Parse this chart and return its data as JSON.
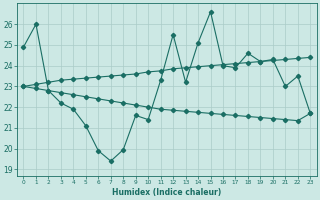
{
  "title": "",
  "xlabel": "Humidex (Indice chaleur)",
  "bg_color": "#cce8e4",
  "line_color": "#1a6e64",
  "grid_color": "#aaccc8",
  "xlim": [
    -0.5,
    23.5
  ],
  "ylim": [
    18.7,
    27.0
  ],
  "yticks": [
    19,
    20,
    21,
    22,
    23,
    24,
    25,
    26
  ],
  "xticks": [
    0,
    1,
    2,
    3,
    4,
    5,
    6,
    7,
    8,
    9,
    10,
    11,
    12,
    13,
    14,
    15,
    16,
    17,
    18,
    19,
    20,
    21,
    22,
    23
  ],
  "line1_x": [
    0,
    1,
    2,
    3,
    4,
    5,
    6,
    7,
    8,
    9,
    10,
    11,
    12,
    13,
    14,
    15,
    16,
    17,
    18,
    19,
    20,
    21,
    22,
    23
  ],
  "line1_y": [
    24.9,
    26.0,
    22.8,
    22.2,
    21.9,
    21.1,
    19.9,
    19.4,
    19.95,
    21.6,
    21.4,
    23.3,
    25.5,
    23.2,
    25.1,
    26.6,
    24.0,
    23.9,
    24.6,
    24.2,
    24.3,
    23.0,
    23.5,
    21.7
  ],
  "line2_x": [
    0,
    1,
    2,
    3,
    4,
    5,
    6,
    7,
    8,
    9,
    10,
    11,
    12,
    13,
    14,
    15,
    16,
    17,
    18,
    19,
    20,
    21,
    22,
    23
  ],
  "line2_y": [
    23.0,
    23.1,
    23.2,
    23.3,
    23.35,
    23.4,
    23.45,
    23.5,
    23.55,
    23.6,
    23.7,
    23.75,
    23.85,
    23.9,
    23.95,
    24.0,
    24.05,
    24.1,
    24.15,
    24.2,
    24.25,
    24.3,
    24.35,
    24.4
  ],
  "line3_x": [
    0,
    1,
    2,
    3,
    4,
    5,
    6,
    7,
    8,
    9,
    10,
    11,
    12,
    13,
    14,
    15,
    16,
    17,
    18,
    19,
    20,
    21,
    22,
    23
  ],
  "line3_y": [
    23.0,
    22.9,
    22.8,
    22.7,
    22.6,
    22.5,
    22.4,
    22.3,
    22.2,
    22.1,
    22.0,
    21.9,
    21.85,
    21.8,
    21.75,
    21.7,
    21.65,
    21.6,
    21.55,
    21.5,
    21.45,
    21.4,
    21.35,
    21.7
  ]
}
